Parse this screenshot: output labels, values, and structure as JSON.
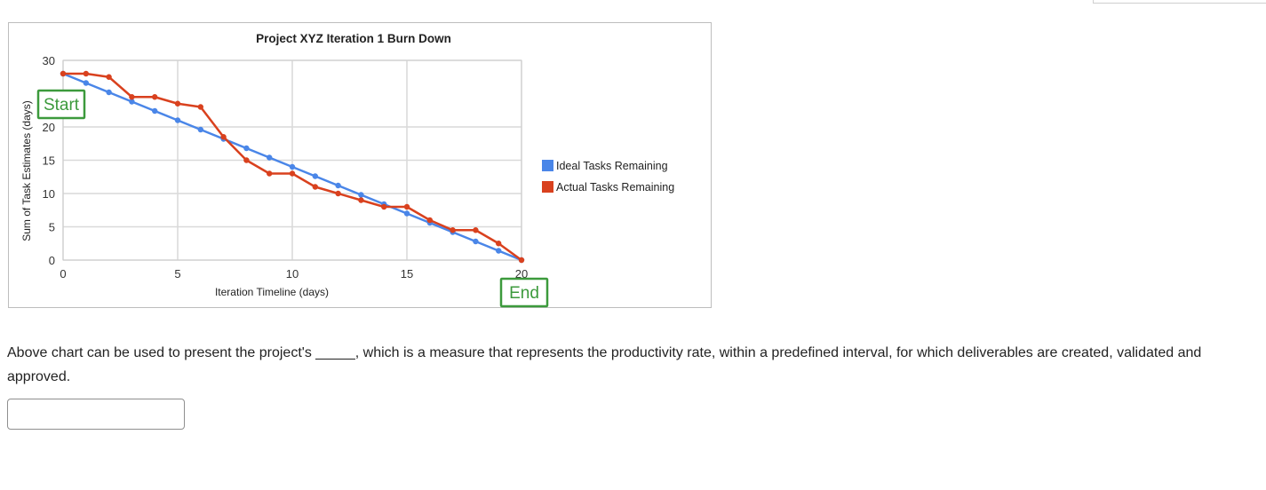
{
  "question": {
    "text": "Above chart can be used to present the project's _____, which is a measure that represents the productivity rate, within a predefined interval, for which deliverables are created, validated and approved."
  },
  "answer": {
    "value": ""
  },
  "colors": {
    "ideal": "#4a86e8",
    "actual": "#d9411e",
    "callout": "#3c9a3c",
    "grid": "#d9d9d9"
  },
  "chart_data": {
    "type": "line",
    "title": "Project XYZ Iteration 1 Burn Down",
    "xlabel": "Iteration Timeline (days)",
    "ylabel": "Sum of Task Estimates (days)",
    "xlim": [
      0,
      20
    ],
    "ylim": [
      0,
      30
    ],
    "xticks": [
      0,
      5,
      10,
      15,
      20
    ],
    "yticks": [
      0,
      5,
      10,
      15,
      20,
      30
    ],
    "grid": true,
    "legend_position": "right",
    "x": [
      0,
      1,
      2,
      3,
      4,
      5,
      6,
      7,
      8,
      9,
      10,
      11,
      12,
      13,
      14,
      15,
      16,
      17,
      18,
      19,
      20
    ],
    "series": [
      {
        "name": "Ideal Tasks Remaining",
        "color": "#4a86e8",
        "values": [
          28,
          26.6,
          25.2,
          23.8,
          22.4,
          21,
          19.6,
          18.2,
          16.8,
          15.4,
          14,
          12.6,
          11.2,
          9.8,
          8.4,
          7,
          5.6,
          4.2,
          2.8,
          1.4,
          0
        ]
      },
      {
        "name": "Actual Tasks Remaining",
        "color": "#d9411e",
        "values": [
          28,
          28,
          27.5,
          24.5,
          24.5,
          23.5,
          23,
          18.5,
          15,
          13,
          13,
          11,
          10,
          9,
          8,
          8,
          6,
          4.5,
          4.5,
          2.5,
          0
        ]
      }
    ],
    "annotations": [
      {
        "text": "Start",
        "x": 0,
        "y": 23.5
      },
      {
        "text": "End",
        "x": 20,
        "y": -5
      }
    ]
  }
}
